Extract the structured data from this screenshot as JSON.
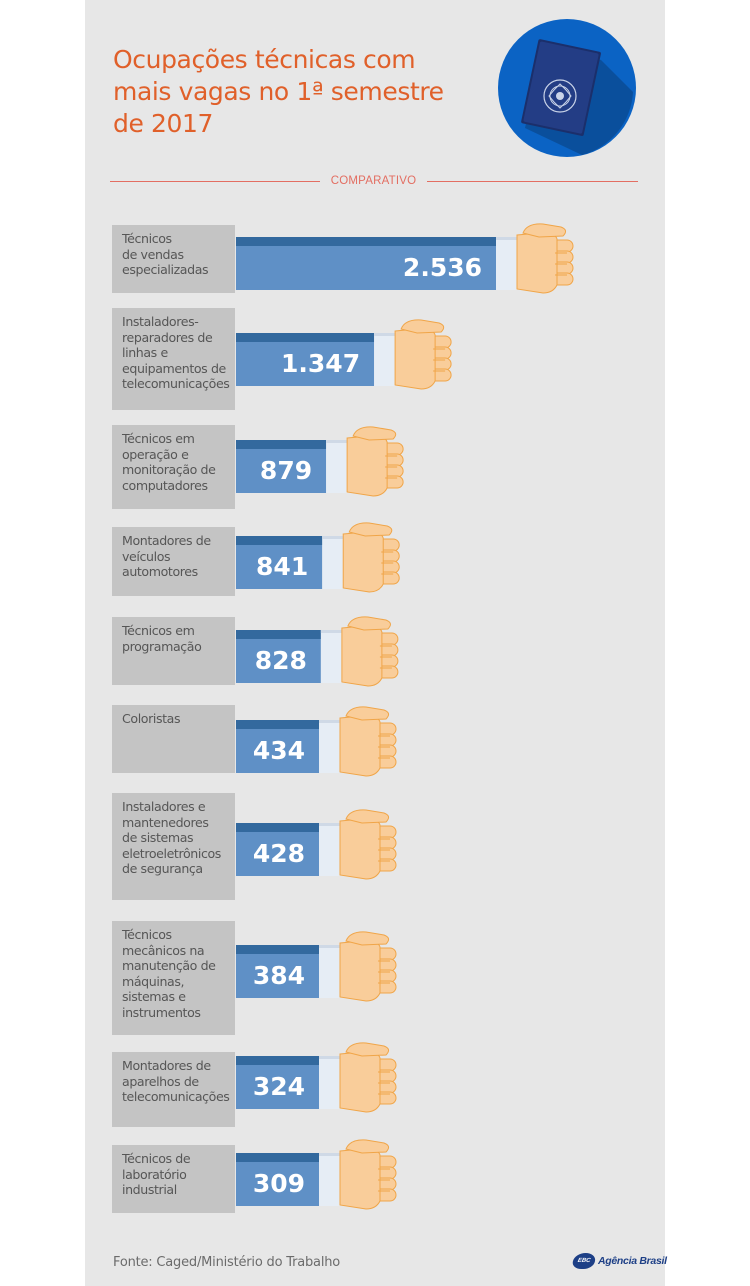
{
  "title": "Ocupações técnicas com mais vagas no 1ª semestre de 2017",
  "section_label": "COMPARATIVO",
  "source": "Fonte: Caged/Ministério do Trabalho",
  "logo": {
    "mark": "EBC",
    "text": "Agência Brasil"
  },
  "colors": {
    "title": "#e0602a",
    "bar": "#5f90c6",
    "bar_top": "#33699e",
    "label_bg": "#c4c4c4",
    "hand": "#f9cd9a",
    "hand_outline": "#f0a548",
    "cuff": "#e6edf5",
    "rule": "#e36e62"
  },
  "icons": {
    "emblem": "work-card-book-icon",
    "hand": "fist-hand-icon"
  },
  "chart_data": {
    "type": "bar",
    "orientation": "horizontal",
    "categories": [
      "Técnicos de vendas especializadas",
      "Instaladores-reparadores de linhas e equipamentos de telecomunicações",
      "Técnicos em operação e monitoração de computadores",
      "Montadores de veículos automotores",
      "Técnicos em programação",
      "Coloristas",
      "Instaladores e mantenedores de sistemas eletroeletrônicos de segurança",
      "Técnicos mecânicos na manutenção de máquinas, sistemas e instrumentos",
      "Montadores de aparelhos de telecomunicações",
      "Técnicos de laboratório industrial"
    ],
    "category_lines": [
      "Técnicos\nde vendas\nespecializadas",
      "Instaladores-\nreparadores de\nlinhas e\nequipamentos de\ntelecomunicações",
      "Técnicos em\noperação e\nmonitoração de\ncomputadores",
      "Montadores de\nveículos\nautomotores",
      "Técnicos em\nprogramação",
      "Coloristas",
      "Instaladores e\nmantenedores\nde sistemas\neletroeletrônicos\nde segurança",
      "Técnicos\nmecânicos na\nmanutenção de\nmáquinas,\nsistemas e\ninstrumentos",
      "Montadores de\naparelhos de\ntelecomunicações",
      "Técnicos de\nlaboratório\nindustrial"
    ],
    "values": [
      2536,
      1347,
      879,
      841,
      828,
      434,
      428,
      384,
      324,
      309
    ],
    "value_labels": [
      "2.536",
      "1.347",
      "879",
      "841",
      "828",
      "434",
      "428",
      "384",
      "324",
      "309"
    ],
    "xlabel": "",
    "ylabel": "",
    "grid": false,
    "legend": "none"
  }
}
